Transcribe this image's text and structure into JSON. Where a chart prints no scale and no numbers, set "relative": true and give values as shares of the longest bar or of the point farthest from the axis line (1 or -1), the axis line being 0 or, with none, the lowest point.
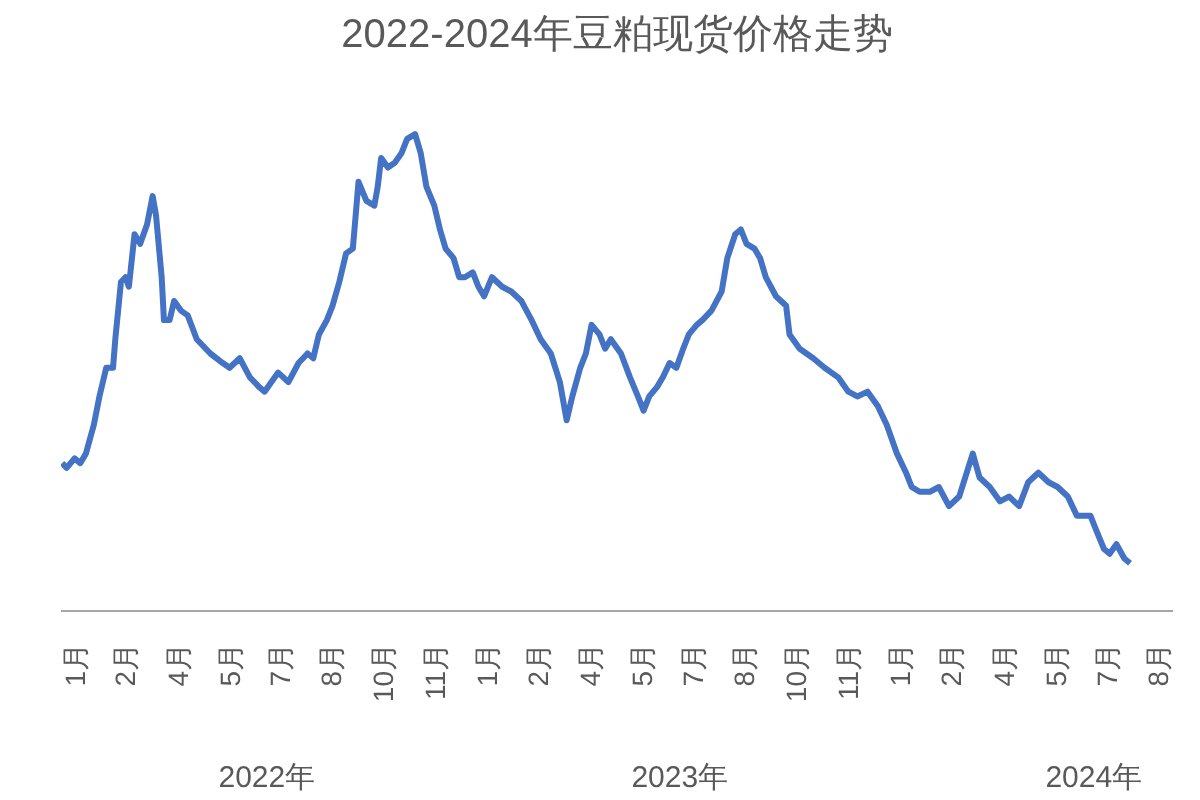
{
  "chart_data": {
    "type": "line",
    "title": "2022-2024年豆粕现货价格走势",
    "relative": true,
    "color": "#4472c4",
    "line_style": "solid",
    "marker": "none",
    "grid": false,
    "x": [
      "2022-01-02",
      "2022-01-06",
      "2022-01-13",
      "2022-01-18",
      "2022-01-23",
      "2022-01-30",
      "2022-02-04",
      "2022-02-10",
      "2022-02-16",
      "2022-02-18",
      "2022-02-23",
      "2022-02-27",
      "2022-03-02",
      "2022-03-07",
      "2022-03-12",
      "2022-03-18",
      "2022-03-23",
      "2022-03-26",
      "2022-03-31",
      "2022-04-02",
      "2022-04-07",
      "2022-04-11",
      "2022-04-17",
      "2022-04-23",
      "2022-05-01",
      "2022-05-13",
      "2022-05-24",
      "2022-05-30",
      "2022-06-08",
      "2022-06-17",
      "2022-06-25",
      "2022-06-30",
      "2022-07-06",
      "2022-07-12",
      "2022-07-21",
      "2022-07-30",
      "2022-08-07",
      "2022-08-12",
      "2022-08-17",
      "2022-08-24",
      "2022-08-29",
      "2022-09-04",
      "2022-09-10",
      "2022-09-16",
      "2022-09-21",
      "2022-09-28",
      "2022-10-05",
      "2022-10-08",
      "2022-10-11",
      "2022-10-17",
      "2022-10-23",
      "2022-10-29",
      "2022-11-03",
      "2022-11-10",
      "2022-11-15",
      "2022-11-20",
      "2022-11-27",
      "2022-12-02",
      "2022-12-07",
      "2022-12-14",
      "2022-12-19",
      "2022-12-24",
      "2022-12-31",
      "2023-01-05",
      "2023-01-10",
      "2023-01-17",
      "2023-01-26",
      "2023-02-03",
      "2023-02-12",
      "2023-02-21",
      "2023-03-01",
      "2023-03-10",
      "2023-03-18",
      "2023-03-24",
      "2023-03-29",
      "2023-04-05",
      "2023-04-10",
      "2023-04-15",
      "2023-04-22",
      "2023-04-27",
      "2023-05-02",
      "2023-05-11",
      "2023-05-19",
      "2023-05-26",
      "2023-05-31",
      "2023-06-05",
      "2023-06-12",
      "2023-06-17",
      "2023-06-23",
      "2023-06-29",
      "2023-07-05",
      "2023-07-10",
      "2023-07-17",
      "2023-07-22",
      "2023-07-30",
      "2023-08-08",
      "2023-08-13",
      "2023-08-20",
      "2023-08-25",
      "2023-08-30",
      "2023-09-06",
      "2023-09-11",
      "2023-09-16",
      "2023-09-25",
      "2023-10-04",
      "2023-10-07",
      "2023-10-16",
      "2023-10-28",
      "2023-11-07",
      "2023-11-19",
      "2023-11-28",
      "2023-12-06",
      "2023-12-15",
      "2023-12-24",
      "2024-01-01",
      "2024-01-10",
      "2024-01-18",
      "2024-01-23",
      "2024-01-30",
      "2024-02-08",
      "2024-02-16",
      "2024-02-25",
      "2024-03-05",
      "2024-03-13",
      "2024-03-17",
      "2024-03-23",
      "2024-04-01",
      "2024-04-10",
      "2024-04-18",
      "2024-04-27",
      "2024-05-05",
      "2024-05-14",
      "2024-05-23",
      "2024-05-31",
      "2024-06-09",
      "2024-06-17",
      "2024-06-29",
      "2024-07-04",
      "2024-07-11",
      "2024-07-16",
      "2024-07-22",
      "2024-07-29",
      "2024-08-03"
    ],
    "values": [
      0.31,
      0.3,
      0.32,
      0.31,
      0.33,
      0.39,
      0.45,
      0.51,
      0.51,
      0.57,
      0.69,
      0.7,
      0.68,
      0.79,
      0.77,
      0.81,
      0.87,
      0.83,
      0.7,
      0.61,
      0.61,
      0.65,
      0.63,
      0.62,
      0.57,
      0.54,
      0.52,
      0.51,
      0.53,
      0.49,
      0.47,
      0.46,
      0.48,
      0.5,
      0.48,
      0.52,
      0.54,
      0.53,
      0.58,
      0.61,
      0.64,
      0.69,
      0.75,
      0.76,
      0.9,
      0.86,
      0.85,
      0.89,
      0.95,
      0.93,
      0.94,
      0.96,
      0.99,
      1.0,
      0.96,
      0.89,
      0.85,
      0.8,
      0.76,
      0.74,
      0.7,
      0.7,
      0.71,
      0.68,
      0.66,
      0.7,
      0.68,
      0.67,
      0.65,
      0.61,
      0.57,
      0.54,
      0.48,
      0.4,
      0.45,
      0.51,
      0.54,
      0.6,
      0.58,
      0.55,
      0.57,
      0.54,
      0.49,
      0.45,
      0.42,
      0.45,
      0.47,
      0.49,
      0.52,
      0.51,
      0.55,
      0.58,
      0.6,
      0.61,
      0.63,
      0.67,
      0.74,
      0.79,
      0.8,
      0.77,
      0.76,
      0.74,
      0.7,
      0.66,
      0.64,
      0.58,
      0.55,
      0.53,
      0.51,
      0.49,
      0.46,
      0.45,
      0.46,
      0.43,
      0.39,
      0.33,
      0.29,
      0.26,
      0.25,
      0.25,
      0.26,
      0.22,
      0.24,
      0.3,
      0.33,
      0.28,
      0.26,
      0.23,
      0.24,
      0.22,
      0.27,
      0.29,
      0.27,
      0.26,
      0.24,
      0.2,
      0.2,
      0.17,
      0.13,
      0.12,
      0.14,
      0.11,
      0.1
    ],
    "xlim": [
      "2022-01-01",
      "2024-09-10"
    ],
    "xticks": [
      {
        "value": "2022-01-13",
        "label": "1月"
      },
      {
        "value": "2022-02-27",
        "label": "2月"
      },
      {
        "value": "2022-04-14",
        "label": "4月"
      },
      {
        "value": "2022-05-30",
        "label": "5月"
      },
      {
        "value": "2022-07-14",
        "label": "7月"
      },
      {
        "value": "2022-08-28",
        "label": "8月"
      },
      {
        "value": "2022-10-13",
        "label": "10月"
      },
      {
        "value": "2022-11-28",
        "label": "11月"
      },
      {
        "value": "2023-01-13",
        "label": "1月"
      },
      {
        "value": "2023-02-27",
        "label": "2月"
      },
      {
        "value": "2023-04-14",
        "label": "4月"
      },
      {
        "value": "2023-05-30",
        "label": "5月"
      },
      {
        "value": "2023-07-14",
        "label": "7月"
      },
      {
        "value": "2023-08-28",
        "label": "8月"
      },
      {
        "value": "2023-10-13",
        "label": "10月"
      },
      {
        "value": "2023-11-28",
        "label": "11月"
      },
      {
        "value": "2024-01-13",
        "label": "1月"
      },
      {
        "value": "2024-02-27",
        "label": "2月"
      },
      {
        "value": "2024-04-14",
        "label": "4月"
      },
      {
        "value": "2024-05-30",
        "label": "5月"
      },
      {
        "value": "2024-07-14",
        "label": "7月"
      },
      {
        "value": "2024-08-28",
        "label": "8月"
      }
    ],
    "x2lim": [
      "2022-01-01",
      "2024-09-10"
    ],
    "x2ticks": [
      {
        "value": "2022-07-02",
        "label": "2022年"
      },
      {
        "value": "2023-07-02",
        "label": "2023年"
      },
      {
        "value": "2024-07-02",
        "label": "2024年"
      }
    ]
  }
}
